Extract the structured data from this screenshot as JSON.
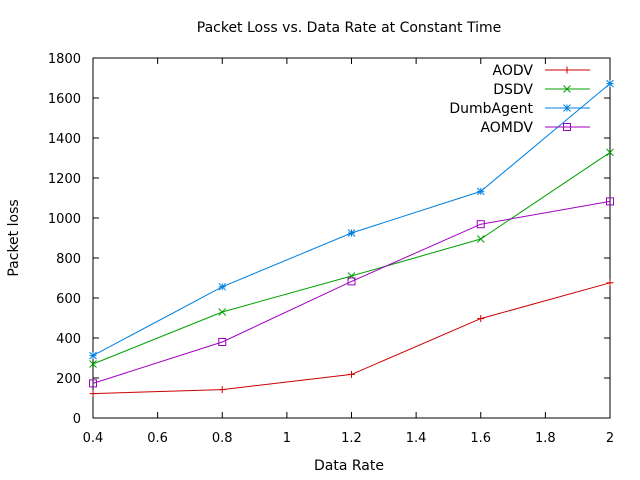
{
  "chart_data": {
    "type": "line",
    "title": "Packet Loss vs. Data Rate at Constant Time",
    "xlabel": "Data Rate",
    "ylabel": "Packet loss",
    "xlim": [
      0.4,
      2
    ],
    "ylim": [
      0,
      1800
    ],
    "xticks": [
      0.4,
      0.6,
      0.8,
      1,
      1.2,
      1.4,
      1.6,
      1.8,
      2
    ],
    "xtick_labels": [
      "0.4",
      "0.6",
      "0.8",
      "1",
      "1.2",
      "1.4",
      "1.6",
      "1.8",
      "2"
    ],
    "yticks": [
      0,
      200,
      400,
      600,
      800,
      1000,
      1200,
      1400,
      1600,
      1800
    ],
    "ytick_labels": [
      "0",
      "200",
      "400",
      "600",
      "800",
      "1000",
      "1200",
      "1400",
      "1600",
      "1800"
    ],
    "grid": false,
    "legend_position": "top-right",
    "x": [
      0.4,
      0.8,
      1.2,
      1.6,
      2.0
    ],
    "series": [
      {
        "name": "AODV",
        "color": "#cc0000",
        "marker": "plus",
        "values": [
          122,
          142,
          218,
          497,
          676
        ]
      },
      {
        "name": "DSDV",
        "color": "#00a000",
        "marker": "cross",
        "values": [
          270,
          530,
          710,
          895,
          1328
        ]
      },
      {
        "name": "DumbAgent",
        "color": "#0080e0",
        "marker": "star",
        "values": [
          312,
          656,
          925,
          1133,
          1672
        ]
      },
      {
        "name": "AOMDV",
        "color": "#a000c0",
        "marker": "square",
        "values": [
          173,
          380,
          683,
          969,
          1083
        ]
      }
    ]
  }
}
